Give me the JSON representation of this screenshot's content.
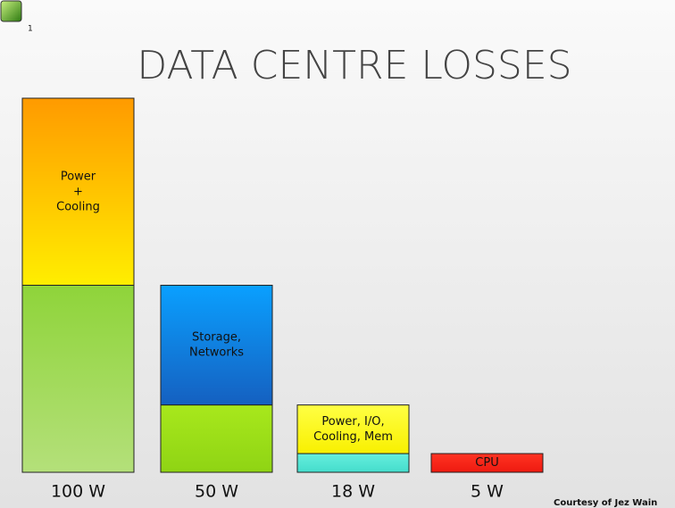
{
  "slide_number": "1",
  "footer": "Courtesy of Jez Wain",
  "chart_data": {
    "type": "stacked-bar",
    "title": "DATA CENTRE LOSSES",
    "categories": [
      "100 W",
      "50 W",
      "18 W",
      "5 W"
    ],
    "ylim": [
      0,
      100
    ],
    "bars": [
      {
        "segments": [
          {
            "value": 50,
            "color": [
              "#8fd43a",
              "#b4e07a"
            ]
          },
          {
            "value": 50,
            "label": [
              "Power",
              "+",
              "Cooling"
            ],
            "color": [
              "#ff9a00",
              "#ffee00"
            ]
          }
        ]
      },
      {
        "segments": [
          {
            "value": 18,
            "color": [
              "#a8e81c",
              "#8fd414"
            ]
          },
          {
            "value": 32,
            "label": [
              "Storage,",
              "Networks"
            ],
            "color": [
              "#0aa0ff",
              "#1560c0"
            ]
          }
        ]
      },
      {
        "segments": [
          {
            "value": 5,
            "color": [
              "#66eedd",
              "#44ddcc"
            ]
          },
          {
            "value": 13,
            "label": [
              "Power, I/O,",
              "Cooling, Mem"
            ],
            "color": [
              "#ffff44",
              "#f8f000"
            ]
          }
        ]
      },
      {
        "segments": [
          {
            "value": 5,
            "label": [
              "CPU"
            ],
            "color": [
              "#ff3322",
              "#ee1a10"
            ]
          }
        ]
      }
    ]
  }
}
